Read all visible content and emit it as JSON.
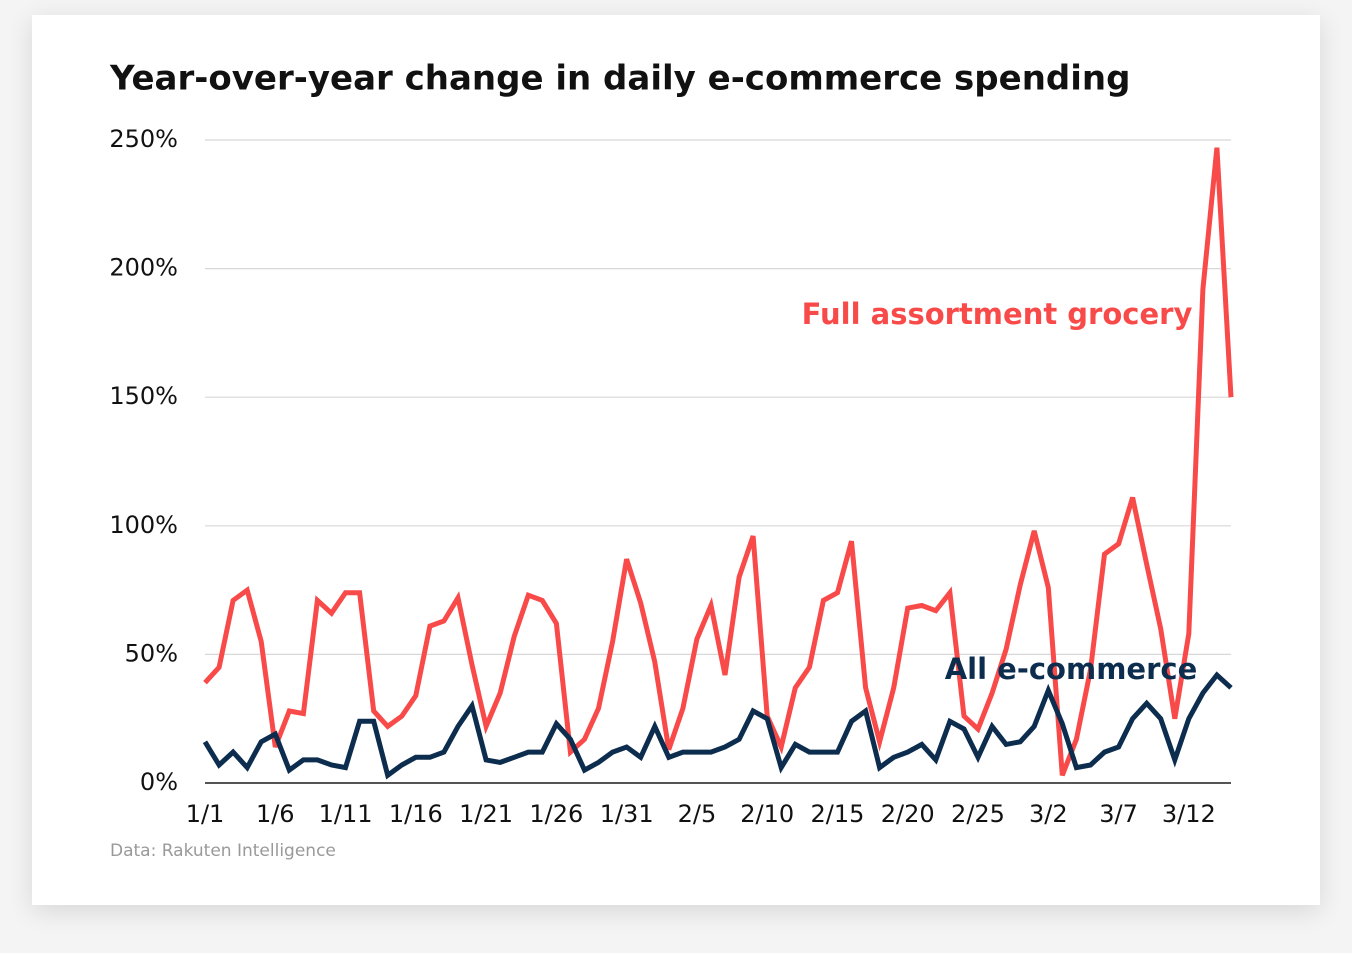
{
  "chart_data": {
    "type": "line",
    "title": "Year-over-year change in daily e-commerce spending",
    "source": "Data: Rakuten Intelligence",
    "categories": [
      "1/1",
      null,
      null,
      null,
      null,
      "1/6",
      null,
      null,
      null,
      null,
      "1/11",
      null,
      null,
      null,
      null,
      "1/16",
      null,
      null,
      null,
      null,
      "1/21",
      null,
      null,
      null,
      null,
      "1/26",
      null,
      null,
      null,
      null,
      "1/31",
      null,
      null,
      null,
      null,
      "2/5",
      null,
      null,
      null,
      null,
      "2/10",
      null,
      null,
      null,
      null,
      "2/15",
      null,
      null,
      null,
      null,
      "2/20",
      null,
      null,
      null,
      null,
      "2/25",
      null,
      null,
      null,
      null,
      "3/2",
      null,
      null,
      null,
      null,
      "3/7",
      null,
      null,
      null,
      null,
      "3/12",
      null,
      null,
      null
    ],
    "series": [
      {
        "name": "Full assortment grocery",
        "color": "#f94a4a",
        "values": [
          39,
          45,
          71,
          75,
          55,
          14,
          28,
          27,
          71,
          66,
          74,
          74,
          28,
          22,
          26,
          34,
          61,
          63,
          72,
          46,
          22,
          35,
          57,
          73,
          71,
          62,
          12,
          17,
          29,
          55,
          87,
          70,
          47,
          13,
          29,
          56,
          69,
          42,
          80,
          96,
          26,
          14,
          37,
          45,
          71,
          74,
          94,
          37,
          16,
          37,
          68,
          69,
          67,
          74,
          26,
          21,
          35,
          52,
          77,
          98,
          76,
          3,
          17,
          44,
          89,
          93,
          111,
          85,
          60,
          25,
          58,
          192,
          247,
          150
        ]
      },
      {
        "name": "All e-commerce",
        "color": "#0d2d4f",
        "values": [
          16,
          7,
          12,
          6,
          16,
          19,
          5,
          9,
          9,
          7,
          6,
          24,
          24,
          3,
          7,
          10,
          10,
          12,
          22,
          30,
          9,
          8,
          10,
          12,
          12,
          23,
          17,
          5,
          8,
          12,
          14,
          10,
          22,
          10,
          12,
          12,
          12,
          14,
          17,
          28,
          25,
          6,
          15,
          12,
          12,
          12,
          24,
          28,
          6,
          10,
          12,
          15,
          9,
          24,
          21,
          10,
          22,
          15,
          16,
          22,
          36,
          23,
          6,
          7,
          12,
          14,
          25,
          31,
          25,
          9,
          25,
          35,
          42,
          37
        ]
      }
    ],
    "ylim": [
      0,
      250
    ],
    "yticks": [
      {
        "value": 0,
        "label": "0%"
      },
      {
        "value": 50,
        "label": "50%"
      },
      {
        "value": 100,
        "label": "100%"
      },
      {
        "value": 150,
        "label": "150%"
      },
      {
        "value": 200,
        "label": "200%"
      },
      {
        "value": 250,
        "label": "250%"
      }
    ],
    "grid": true
  }
}
